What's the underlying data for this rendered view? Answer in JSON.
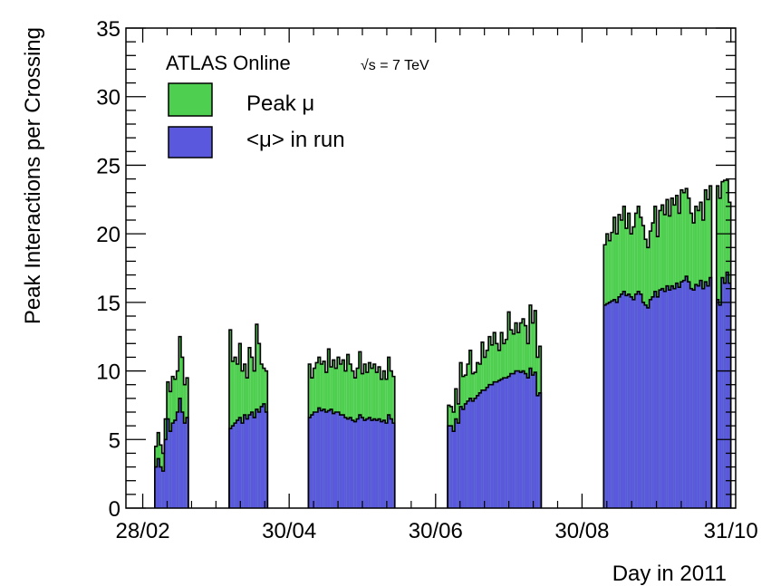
{
  "chart_data": {
    "type": "bar",
    "title": "",
    "xlabel": "Day in 2011",
    "ylabel": "Peak Interactions per Crossing",
    "annotation": {
      "experiment": "ATLAS Online",
      "energy": "√s = 7 TeV"
    },
    "xlim": [
      52,
      306
    ],
    "ylim": [
      0,
      35
    ],
    "x_ticks": [
      {
        "value": 59,
        "label": "28/02"
      },
      {
        "value": 120,
        "label": "30/04"
      },
      {
        "value": 181,
        "label": "30/06"
      },
      {
        "value": 242,
        "label": "30/08"
      },
      {
        "value": 304,
        "label": "31/10"
      }
    ],
    "y_ticks": [
      0,
      5,
      10,
      15,
      20,
      25,
      30,
      35
    ],
    "legend": {
      "position": "top-left"
    },
    "colors": {
      "peak": "#4fcf4f",
      "avg": "#5a58dd",
      "edge": "#000000"
    },
    "bin_width": 1,
    "series": [
      {
        "name": "Peak μ",
        "color": "#4fcf4f",
        "points": [
          [
            64,
            4.5
          ],
          [
            65,
            5.5
          ],
          [
            66,
            4.6
          ],
          [
            67,
            4.0
          ],
          [
            68,
            6.5
          ],
          [
            69,
            9.2
          ],
          [
            70,
            8.5
          ],
          [
            71,
            9.6
          ],
          [
            72,
            9.4
          ],
          [
            73,
            10.0
          ],
          [
            74,
            12.5
          ],
          [
            75,
            11.0
          ],
          [
            76,
            9.0
          ],
          [
            77,
            9.5
          ],
          [
            95,
            13.0
          ],
          [
            96,
            10.7
          ],
          [
            97,
            11.0
          ],
          [
            98,
            10.5
          ],
          [
            99,
            12.0
          ],
          [
            100,
            10.0
          ],
          [
            101,
            10.5
          ],
          [
            102,
            9.5
          ],
          [
            103,
            11.7
          ],
          [
            104,
            11.0
          ],
          [
            105,
            10.0
          ],
          [
            106,
            13.4
          ],
          [
            107,
            12.0
          ],
          [
            108,
            10.5
          ],
          [
            109,
            10.2
          ],
          [
            110,
            10.0
          ],
          [
            128,
            10.5
          ],
          [
            129,
            9.5
          ],
          [
            130,
            10.2
          ],
          [
            131,
            10.6
          ],
          [
            132,
            11.0
          ],
          [
            133,
            10.5
          ],
          [
            134,
            10.7
          ],
          [
            135,
            9.9
          ],
          [
            136,
            11.6
          ],
          [
            137,
            10.3
          ],
          [
            138,
            10.8
          ],
          [
            139,
            10.2
          ],
          [
            140,
            11.0
          ],
          [
            141,
            10.5
          ],
          [
            142,
            10.8
          ],
          [
            143,
            10.0
          ],
          [
            144,
            11.2
          ],
          [
            145,
            10.5
          ],
          [
            146,
            10.0
          ],
          [
            147,
            9.5
          ],
          [
            148,
            10.2
          ],
          [
            149,
            11.4
          ],
          [
            150,
            9.8
          ],
          [
            151,
            10.5
          ],
          [
            152,
            9.9
          ],
          [
            153,
            10.6
          ],
          [
            154,
            10.2
          ],
          [
            155,
            10.5
          ],
          [
            156,
            9.9
          ],
          [
            157,
            10.3
          ],
          [
            158,
            9.4
          ],
          [
            159,
            10.0
          ],
          [
            160,
            9.4
          ],
          [
            161,
            11.0
          ],
          [
            162,
            10.0
          ],
          [
            163,
            9.6
          ],
          [
            186,
            7.5
          ],
          [
            187,
            7.4
          ],
          [
            188,
            7.0
          ],
          [
            189,
            8.7
          ],
          [
            190,
            7.6
          ],
          [
            191,
            10.6
          ],
          [
            192,
            9.6
          ],
          [
            193,
            9.7
          ],
          [
            194,
            10.5
          ],
          [
            195,
            11.5
          ],
          [
            196,
            9.8
          ],
          [
            197,
            9.9
          ],
          [
            198,
            10.6
          ],
          [
            199,
            10.5
          ],
          [
            200,
            12.1
          ],
          [
            201,
            11.0
          ],
          [
            202,
            11.5
          ],
          [
            203,
            12.5
          ],
          [
            204,
            11.9
          ],
          [
            205,
            12.8
          ],
          [
            206,
            12.0
          ],
          [
            207,
            11.5
          ],
          [
            208,
            12.8
          ],
          [
            209,
            12.0
          ],
          [
            210,
            12.3
          ],
          [
            211,
            14.3
          ],
          [
            212,
            13.0
          ],
          [
            213,
            12.7
          ],
          [
            214,
            13.5
          ],
          [
            215,
            12.8
          ],
          [
            216,
            13.5
          ],
          [
            217,
            13.8
          ],
          [
            218,
            13.3
          ],
          [
            219,
            12.0
          ],
          [
            220,
            14.8
          ],
          [
            221,
            13.5
          ],
          [
            222,
            14.4
          ],
          [
            223,
            11.0
          ],
          [
            224,
            11.8
          ],
          [
            251,
            19.2
          ],
          [
            252,
            20.0
          ],
          [
            253,
            19.5
          ],
          [
            254,
            20.1
          ],
          [
            255,
            21.2
          ],
          [
            256,
            20.0
          ],
          [
            257,
            21.4
          ],
          [
            258,
            21.0
          ],
          [
            259,
            22.0
          ],
          [
            260,
            20.4
          ],
          [
            261,
            21.5
          ],
          [
            262,
            20.0
          ],
          [
            263,
            20.5
          ],
          [
            264,
            21.5
          ],
          [
            265,
            22.0
          ],
          [
            266,
            21.2
          ],
          [
            267,
            20.6
          ],
          [
            268,
            19.6
          ],
          [
            269,
            19.0
          ],
          [
            270,
            20.2
          ],
          [
            271,
            20.8
          ],
          [
            272,
            22.0
          ],
          [
            273,
            19.8
          ],
          [
            274,
            21.7
          ],
          [
            275,
            22.1
          ],
          [
            276,
            21.4
          ],
          [
            277,
            22.5
          ],
          [
            278,
            21.3
          ],
          [
            279,
            22.6
          ],
          [
            280,
            22.1
          ],
          [
            281,
            22.8
          ],
          [
            282,
            21.5
          ],
          [
            283,
            23.2
          ],
          [
            284,
            23.0
          ],
          [
            285,
            23.3
          ],
          [
            286,
            22.6
          ],
          [
            287,
            21.5
          ],
          [
            288,
            20.8
          ],
          [
            289,
            22.0
          ],
          [
            290,
            21.7
          ],
          [
            291,
            22.3
          ],
          [
            292,
            21.0
          ],
          [
            293,
            23.2
          ],
          [
            294,
            22.5
          ],
          [
            295,
            23.5
          ],
          [
            298,
            23.5
          ],
          [
            299,
            22.6
          ],
          [
            300,
            23.8
          ],
          [
            301,
            23.9
          ],
          [
            302,
            23.9
          ],
          [
            303,
            22.3
          ]
        ]
      },
      {
        "name": "<μ> in run",
        "color": "#5a58dd",
        "points": [
          [
            64,
            3.0
          ],
          [
            65,
            3.6
          ],
          [
            66,
            3.0
          ],
          [
            67,
            2.7
          ],
          [
            68,
            5.0
          ],
          [
            69,
            6.5
          ],
          [
            70,
            5.6
          ],
          [
            71,
            6.2
          ],
          [
            72,
            6.4
          ],
          [
            73,
            7.0
          ],
          [
            74,
            8.0
          ],
          [
            75,
            7.0
          ],
          [
            76,
            6.2
          ],
          [
            77,
            6.6
          ],
          [
            95,
            5.8
          ],
          [
            96,
            6.0
          ],
          [
            97,
            6.2
          ],
          [
            98,
            6.4
          ],
          [
            99,
            6.6
          ],
          [
            100,
            6.2
          ],
          [
            101,
            6.8
          ],
          [
            102,
            6.5
          ],
          [
            103,
            6.8
          ],
          [
            104,
            7.0
          ],
          [
            105,
            6.6
          ],
          [
            106,
            7.2
          ],
          [
            107,
            7.0
          ],
          [
            108,
            7.4
          ],
          [
            109,
            7.6
          ],
          [
            110,
            7.0
          ],
          [
            128,
            6.6
          ],
          [
            129,
            6.8
          ],
          [
            130,
            7.0
          ],
          [
            131,
            7.0
          ],
          [
            132,
            7.3
          ],
          [
            133,
            7.1
          ],
          [
            134,
            7.2
          ],
          [
            135,
            7.0
          ],
          [
            136,
            7.1
          ],
          [
            137,
            7.2
          ],
          [
            138,
            6.9
          ],
          [
            139,
            7.0
          ],
          [
            140,
            7.0
          ],
          [
            141,
            6.8
          ],
          [
            142,
            6.8
          ],
          [
            143,
            6.6
          ],
          [
            144,
            6.5
          ],
          [
            145,
            6.6
          ],
          [
            146,
            6.4
          ],
          [
            147,
            6.3
          ],
          [
            148,
            6.5
          ],
          [
            149,
            6.8
          ],
          [
            150,
            6.6
          ],
          [
            151,
            6.4
          ],
          [
            152,
            6.5
          ],
          [
            153,
            6.6
          ],
          [
            154,
            6.4
          ],
          [
            155,
            6.5
          ],
          [
            156,
            6.4
          ],
          [
            157,
            6.5
          ],
          [
            158,
            6.3
          ],
          [
            159,
            6.4
          ],
          [
            160,
            6.2
          ],
          [
            161,
            6.8
          ],
          [
            162,
            6.5
          ],
          [
            163,
            6.2
          ],
          [
            186,
            6.0
          ],
          [
            187,
            6.0
          ],
          [
            188,
            5.6
          ],
          [
            189,
            6.5
          ],
          [
            190,
            6.2
          ],
          [
            191,
            7.4
          ],
          [
            192,
            7.2
          ],
          [
            193,
            7.6
          ],
          [
            194,
            7.8
          ],
          [
            195,
            8.0
          ],
          [
            196,
            7.8
          ],
          [
            197,
            8.0
          ],
          [
            198,
            8.2
          ],
          [
            199,
            8.4
          ],
          [
            200,
            8.6
          ],
          [
            201,
            8.6
          ],
          [
            202,
            8.8
          ],
          [
            203,
            9.0
          ],
          [
            204,
            9.0
          ],
          [
            205,
            9.2
          ],
          [
            206,
            9.2
          ],
          [
            207,
            9.3
          ],
          [
            208,
            9.4
          ],
          [
            209,
            9.5
          ],
          [
            210,
            9.5
          ],
          [
            211,
            9.6
          ],
          [
            212,
            9.8
          ],
          [
            213,
            9.8
          ],
          [
            214,
            10.0
          ],
          [
            215,
            10.0
          ],
          [
            216,
            9.9
          ],
          [
            217,
            10.0
          ],
          [
            218,
            9.8
          ],
          [
            219,
            9.5
          ],
          [
            220,
            10.2
          ],
          [
            221,
            9.7
          ],
          [
            222,
            9.9
          ],
          [
            223,
            8.2
          ],
          [
            224,
            8.4
          ],
          [
            251,
            14.8
          ],
          [
            252,
            14.9
          ],
          [
            253,
            15.0
          ],
          [
            254,
            15.1
          ],
          [
            255,
            15.2
          ],
          [
            256,
            15.0
          ],
          [
            257,
            15.4
          ],
          [
            258,
            15.6
          ],
          [
            259,
            15.8
          ],
          [
            260,
            15.5
          ],
          [
            261,
            15.6
          ],
          [
            262,
            15.4
          ],
          [
            263,
            15.2
          ],
          [
            264,
            15.6
          ],
          [
            265,
            15.8
          ],
          [
            266,
            15.6
          ],
          [
            267,
            15.0
          ],
          [
            268,
            14.8
          ],
          [
            269,
            14.6
          ],
          [
            270,
            15.2
          ],
          [
            271,
            15.4
          ],
          [
            272,
            15.8
          ],
          [
            273,
            15.4
          ],
          [
            274,
            15.9
          ],
          [
            275,
            16.0
          ],
          [
            276,
            15.8
          ],
          [
            277,
            16.2
          ],
          [
            278,
            15.9
          ],
          [
            279,
            16.2
          ],
          [
            280,
            16.0
          ],
          [
            281,
            16.4
          ],
          [
            282,
            16.1
          ],
          [
            283,
            16.5
          ],
          [
            284,
            16.6
          ],
          [
            285,
            16.9
          ],
          [
            286,
            16.5
          ],
          [
            287,
            16.0
          ],
          [
            288,
            15.9
          ],
          [
            289,
            16.3
          ],
          [
            290,
            16.2
          ],
          [
            291,
            16.6
          ],
          [
            292,
            16.0
          ],
          [
            293,
            16.5
          ],
          [
            294,
            16.2
          ],
          [
            295,
            16.8
          ],
          [
            298,
            15.2
          ],
          [
            299,
            14.8
          ],
          [
            300,
            16.8
          ],
          [
            301,
            16.4
          ],
          [
            302,
            17.2
          ],
          [
            303,
            16.4
          ]
        ]
      }
    ]
  }
}
